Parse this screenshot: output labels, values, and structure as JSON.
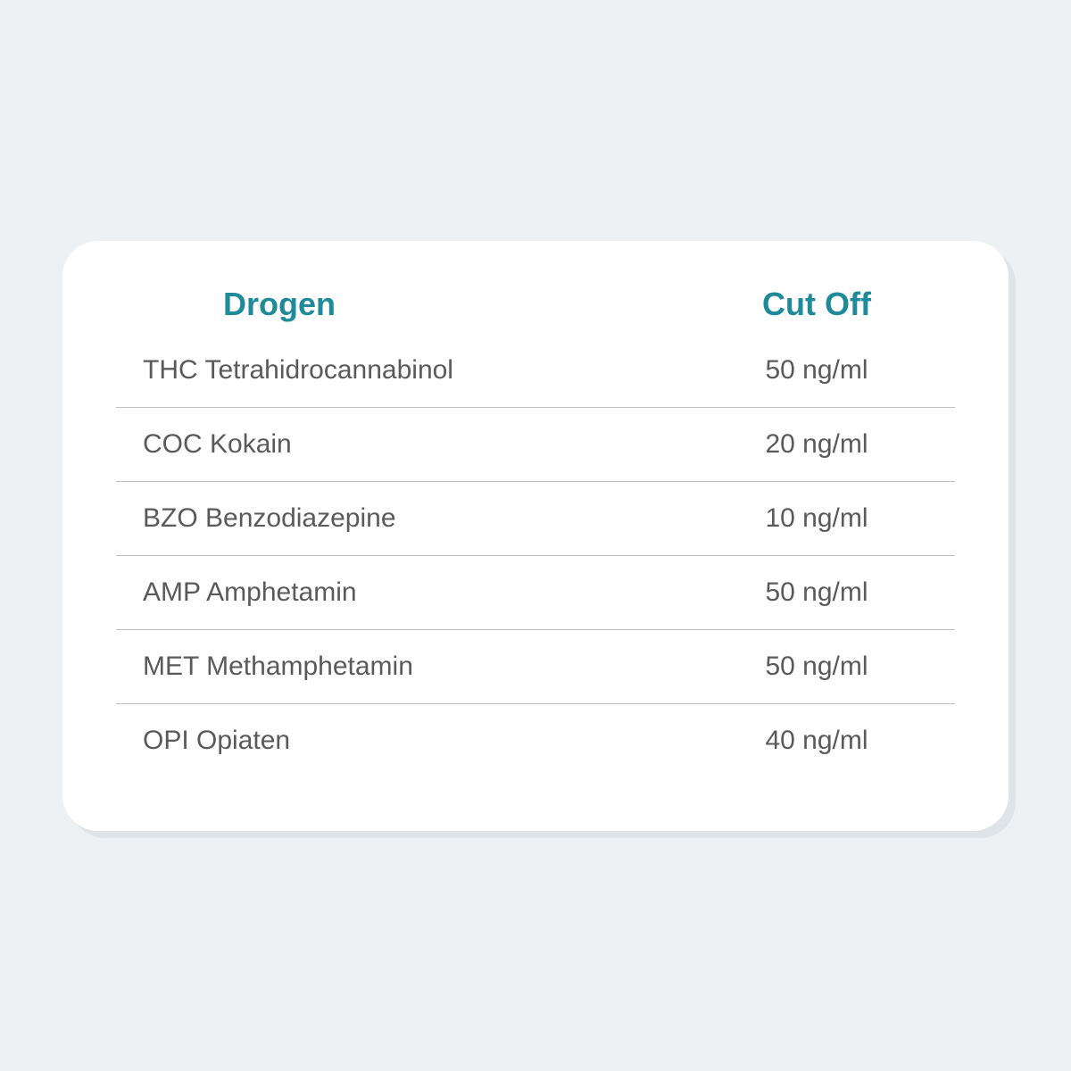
{
  "table": {
    "type": "table",
    "background_color": "#eef1f4",
    "card_background": "#ffffff",
    "card_border_radius": 40,
    "header_color": "#1f8a9a",
    "header_fontsize": 36,
    "header_fontweight": 700,
    "cell_color": "#5a5a5a",
    "cell_fontsize": 30,
    "cell_fontweight": 400,
    "border_color": "#c0c0c0",
    "columns": [
      {
        "label": "Drogen",
        "align": "left"
      },
      {
        "label": "Cut Off",
        "align": "center"
      }
    ],
    "rows": [
      {
        "drug": "THC Tetrahidrocannabinol",
        "cutoff": "50 ng/ml"
      },
      {
        "drug": "COC Kokain",
        "cutoff": "20 ng/ml"
      },
      {
        "drug": "BZO Benzodiazepine",
        "cutoff": "10 ng/ml"
      },
      {
        "drug": "AMP Amphetamin",
        "cutoff": "50 ng/ml"
      },
      {
        "drug": "MET Methamphetamin",
        "cutoff": "50 ng/ml"
      },
      {
        "drug": "OPI Opiaten",
        "cutoff": "40 ng/ml"
      }
    ]
  }
}
